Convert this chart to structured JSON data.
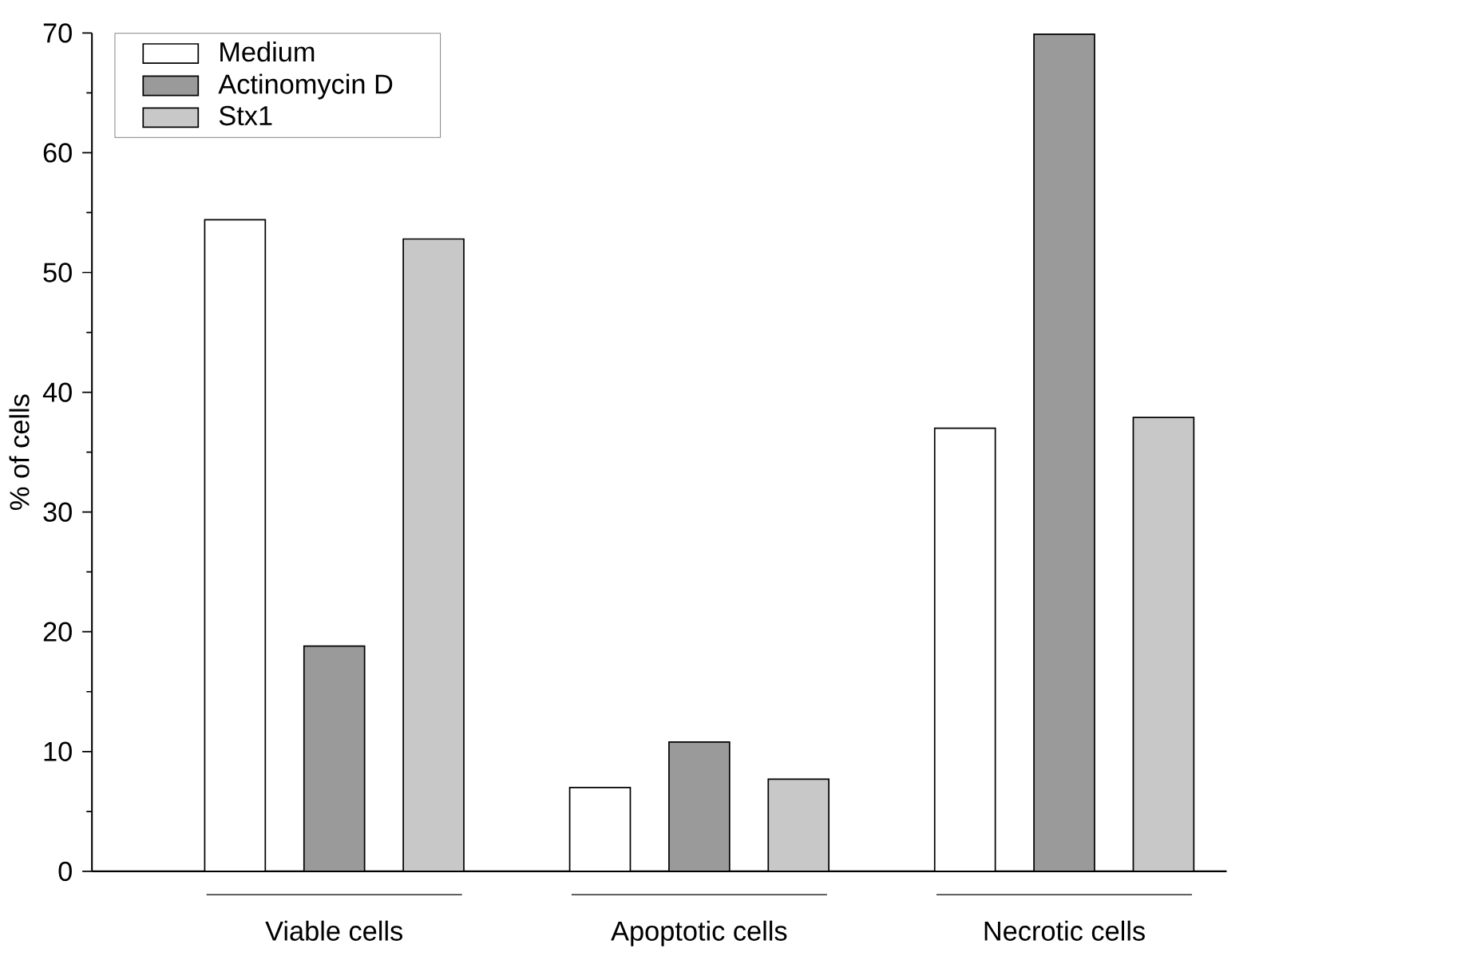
{
  "chart_data": {
    "type": "bar",
    "ylabel": "% of cells",
    "categories": [
      "Viable cells",
      "Apoptotic cells",
      "Necrotic cells"
    ],
    "series": [
      {
        "name": "Medium",
        "color": "#ffffff",
        "values": [
          54.4,
          7.0,
          37.0
        ]
      },
      {
        "name": "Actinomycin D",
        "color": "#9a9a9a",
        "values": [
          18.8,
          10.8,
          69.9
        ]
      },
      {
        "name": "Stx1",
        "color": "#c8c8c8",
        "values": [
          52.8,
          7.7,
          37.9
        ]
      }
    ],
    "ylim": [
      0,
      70
    ],
    "yticks": [
      0,
      10,
      20,
      30,
      40,
      50,
      60,
      70
    ],
    "legend": "top left"
  }
}
